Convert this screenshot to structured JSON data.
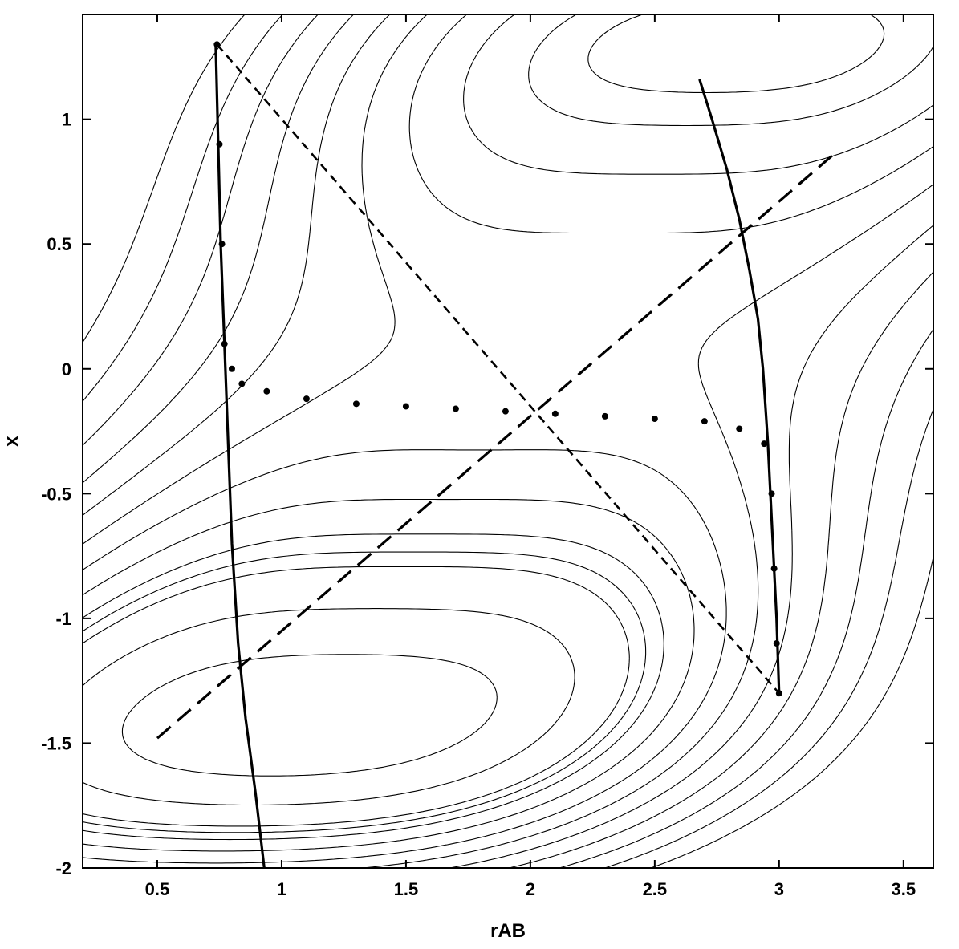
{
  "chart_data": {
    "type": "contour",
    "xlabel": "rAB",
    "ylabel": "x",
    "xlim": [
      0.2,
      3.62
    ],
    "ylim": [
      -2.0,
      1.42
    ],
    "xticks": [
      0.5,
      1,
      1.5,
      2,
      2.5,
      3,
      3.5
    ],
    "xtick_labels": [
      "0.5",
      "1",
      "1.5",
      "2",
      "2.5",
      "3",
      "3.5"
    ],
    "yticks": [
      1,
      0.5,
      0,
      -0.5,
      -1,
      -1.5,
      -2
    ],
    "ytick_labels": [
      "1",
      "0.5",
      "0",
      "-0.5",
      "-1",
      "-1.5",
      "-2"
    ],
    "grid": false,
    "line_color": "#000000",
    "series": [
      {
        "style": "solid-thick",
        "points": [
          [
            0.735,
            1.3
          ],
          [
            0.745,
            0.9
          ],
          [
            0.755,
            0.5
          ],
          [
            0.77,
            0.1
          ],
          [
            0.785,
            -0.3
          ],
          [
            0.8,
            -0.7
          ],
          [
            0.825,
            -1.1
          ],
          [
            0.855,
            -1.4
          ],
          [
            0.895,
            -1.7
          ],
          [
            0.93,
            -2.0
          ]
        ]
      },
      {
        "style": "solid-thick",
        "points": [
          [
            2.68,
            1.16
          ],
          [
            2.73,
            1.0
          ],
          [
            2.79,
            0.8
          ],
          [
            2.84,
            0.6
          ],
          [
            2.88,
            0.4
          ],
          [
            2.915,
            0.2
          ],
          [
            2.935,
            0.0
          ],
          [
            2.955,
            -0.3
          ],
          [
            2.97,
            -0.6
          ],
          [
            2.99,
            -1.0
          ],
          [
            3.0,
            -1.3
          ]
        ]
      },
      {
        "style": "short-dash",
        "points": [
          [
            0.74,
            1.3
          ],
          [
            3.0,
            -1.3
          ]
        ]
      },
      {
        "style": "long-dash",
        "points": [
          [
            0.5,
            -1.48
          ],
          [
            3.22,
            0.86
          ]
        ]
      },
      {
        "style": "dotted",
        "points": [
          [
            0.74,
            1.3
          ],
          [
            0.75,
            0.9
          ],
          [
            0.76,
            0.5
          ],
          [
            0.77,
            0.1
          ],
          [
            0.8,
            0.0
          ],
          [
            0.84,
            -0.06
          ],
          [
            0.94,
            -0.09
          ],
          [
            1.1,
            -0.12
          ],
          [
            1.3,
            -0.14
          ],
          [
            1.5,
            -0.15
          ],
          [
            1.7,
            -0.16
          ],
          [
            1.9,
            -0.17
          ],
          [
            2.1,
            -0.18
          ],
          [
            2.3,
            -0.19
          ],
          [
            2.5,
            -0.2
          ],
          [
            2.7,
            -0.21
          ],
          [
            2.84,
            -0.24
          ],
          [
            2.94,
            -0.3
          ],
          [
            2.97,
            -0.5
          ],
          [
            2.98,
            -0.8
          ],
          [
            2.99,
            -1.1
          ],
          [
            3.0,
            -1.3
          ]
        ]
      }
    ],
    "contours": {
      "source": "V(rAB, x) = 0.9*(x^2 - 1.69)^2 + 2.2*(rAB - 2 - 0.64*x)^2 + 0.67*x + 2.6*exp(-0.9*(rAB - 2 - 0.64*x)^2 - 0.15*x^2)",
      "levels": [
        0.9,
        1.5,
        2.15,
        2.85,
        3.1,
        3.4,
        3.95,
        4.6,
        5.3,
        6.1,
        7.0,
        8.0,
        9.1,
        10.4
      ]
    }
  }
}
